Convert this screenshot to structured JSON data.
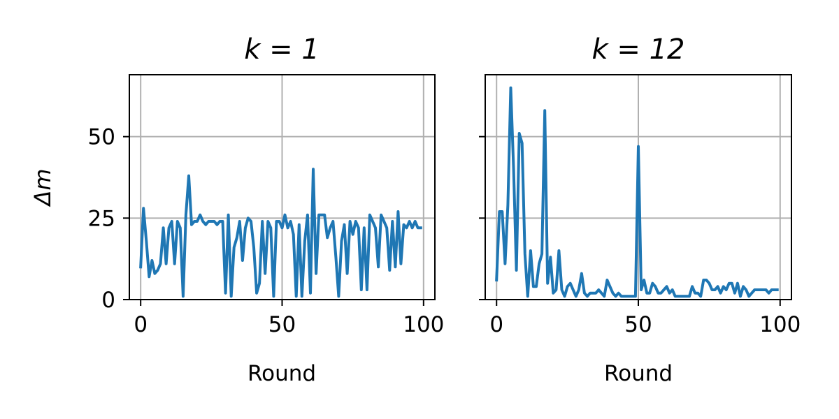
{
  "figure": {
    "ylabel": "Δm"
  },
  "chart_data": [
    {
      "type": "line",
      "title": "k = 1",
      "xlabel": "Round",
      "ylabel": "Δm",
      "xlim": [
        -4,
        104
      ],
      "ylim": [
        0,
        69
      ],
      "xticks": [
        0,
        50,
        100
      ],
      "yticks": [
        0,
        25,
        50
      ],
      "grid": true,
      "color": "#1f77b4",
      "series": [
        {
          "x": [
            0,
            1,
            2,
            3,
            4,
            5,
            6,
            7,
            8,
            9,
            10,
            11,
            12,
            13,
            14,
            15,
            16,
            17,
            18,
            19,
            20,
            21,
            22,
            23,
            24,
            25,
            26,
            27,
            28,
            29,
            30,
            31,
            32,
            33,
            34,
            35,
            36,
            37,
            38,
            39,
            40,
            41,
            42,
            43,
            44,
            45,
            46,
            47,
            48,
            49,
            50,
            51,
            52,
            53,
            54,
            55,
            56,
            57,
            58,
            59,
            60,
            61,
            62,
            63,
            64,
            65,
            66,
            67,
            68,
            69,
            70,
            71,
            72,
            73,
            74,
            75,
            76,
            77,
            78,
            79,
            80,
            81,
            82,
            83,
            84,
            85,
            86,
            87,
            88,
            89,
            90,
            91,
            92,
            93,
            94,
            95,
            96,
            97,
            98,
            99
          ],
          "y": [
            10,
            28,
            18,
            7,
            12,
            8,
            9,
            11,
            22,
            11,
            22,
            24,
            11,
            24,
            22,
            1,
            26,
            38,
            23,
            24,
            24,
            26,
            24,
            23,
            24,
            24,
            24,
            23,
            24,
            24,
            2,
            26,
            1,
            16,
            19,
            24,
            12,
            22,
            25,
            24,
            16,
            2,
            5,
            24,
            8,
            24,
            22,
            1,
            24,
            24,
            22,
            26,
            22,
            24,
            20,
            1,
            23,
            1,
            18,
            26,
            2,
            40,
            8,
            26,
            26,
            26,
            19,
            22,
            24,
            13,
            1,
            18,
            23,
            8,
            24,
            20,
            24,
            22,
            3,
            22,
            3,
            26,
            24,
            22,
            10,
            26,
            24,
            22,
            9,
            24,
            10,
            27,
            11,
            23,
            22,
            24,
            22,
            24,
            22,
            22
          ]
        }
      ]
    },
    {
      "type": "line",
      "title": "k = 12",
      "xlabel": "Round",
      "ylabel": "",
      "xlim": [
        -4,
        104
      ],
      "ylim": [
        0,
        69
      ],
      "xticks": [
        0,
        50,
        100
      ],
      "yticks": [
        0,
        25,
        50
      ],
      "grid": true,
      "color": "#1f77b4",
      "series": [
        {
          "x": [
            0,
            1,
            2,
            3,
            4,
            5,
            6,
            7,
            8,
            9,
            10,
            11,
            12,
            13,
            14,
            15,
            16,
            17,
            18,
            19,
            20,
            21,
            22,
            23,
            24,
            25,
            26,
            27,
            28,
            29,
            30,
            31,
            32,
            33,
            34,
            35,
            36,
            37,
            38,
            39,
            40,
            41,
            42,
            43,
            44,
            45,
            46,
            47,
            48,
            49,
            50,
            51,
            52,
            53,
            54,
            55,
            56,
            57,
            58,
            59,
            60,
            61,
            62,
            63,
            64,
            65,
            66,
            67,
            68,
            69,
            70,
            71,
            72,
            73,
            74,
            75,
            76,
            77,
            78,
            79,
            80,
            81,
            82,
            83,
            84,
            85,
            86,
            87,
            88,
            89,
            90,
            91,
            92,
            93,
            94,
            95,
            96,
            97,
            98,
            99
          ],
          "y": [
            6,
            27,
            27,
            11,
            29,
            65,
            40,
            9,
            51,
            48,
            14,
            1,
            15,
            4,
            4,
            11,
            14,
            58,
            5,
            13,
            2,
            3,
            15,
            3,
            1,
            4,
            5,
            3,
            1,
            3,
            8,
            2,
            1,
            2,
            2,
            2,
            3,
            2,
            1,
            6,
            4,
            2,
            1,
            2,
            1,
            1,
            1,
            1,
            1,
            1,
            47,
            3,
            6,
            2,
            2,
            5,
            4,
            2,
            2,
            3,
            4,
            2,
            3,
            1,
            1,
            1,
            1,
            1,
            1,
            4,
            2,
            2,
            1,
            6,
            6,
            5,
            3,
            3,
            4,
            2,
            4,
            3,
            5,
            5,
            2,
            5,
            1,
            4,
            3,
            1,
            2,
            3,
            3,
            3,
            3,
            3,
            2,
            3,
            3,
            3
          ]
        }
      ]
    }
  ]
}
